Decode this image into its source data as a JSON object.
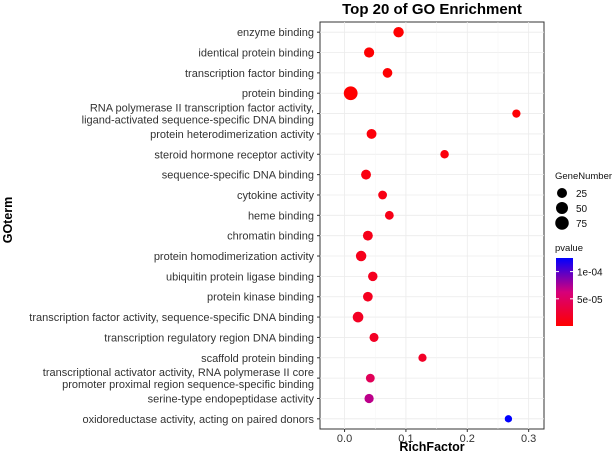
{
  "chart_data": {
    "type": "scatter",
    "title": "Top 20 of GO Enrichment",
    "xlabel": "RichFactor",
    "ylabel": "GOterm",
    "xlim": [
      -0.04,
      0.325
    ],
    "x_ticks": [
      0.0,
      0.1,
      0.2,
      0.3
    ],
    "x_tick_labels": [
      "0.0",
      "0.1",
      "0.2",
      "0.3"
    ],
    "grid": true,
    "legend_position": "right",
    "size_legend": {
      "title": "GeneNumber",
      "values": [
        25,
        50,
        75
      ],
      "labels": [
        "25",
        "50",
        "75"
      ]
    },
    "color_legend": {
      "title": "pvalue",
      "low_color": "#ff0000",
      "high_color": "#0000ff",
      "range": [
        0,
        0.000125
      ],
      "ticks": [
        5e-05,
        0.0001
      ],
      "tick_labels": [
        "5e-05",
        "1e-04"
      ]
    },
    "points": [
      {
        "term": [
          "enzyme binding"
        ],
        "x": 0.088,
        "gene_number": 30,
        "pvalue": 5e-07
      },
      {
        "term": [
          "identical protein binding"
        ],
        "x": 0.04,
        "gene_number": 27,
        "pvalue": 1e-06
      },
      {
        "term": [
          "transcription factor binding"
        ],
        "x": 0.07,
        "gene_number": 22,
        "pvalue": 1e-06
      },
      {
        "term": [
          "protein binding"
        ],
        "x": 0.01,
        "gene_number": 80,
        "pvalue": 1e-07
      },
      {
        "term": [
          "RNA polymerase II transcription factor activity,",
          "ligand-activated sequence-specific DNA binding"
        ],
        "x": 0.28,
        "gene_number": 10,
        "pvalue": 2e-06
      },
      {
        "term": [
          "protein heterodimerization activity"
        ],
        "x": 0.044,
        "gene_number": 24,
        "pvalue": 5e-06
      },
      {
        "term": [
          "steroid hormone receptor activity"
        ],
        "x": 0.163,
        "gene_number": 12,
        "pvalue": 6e-06
      },
      {
        "term": [
          "sequence-specific DNA binding"
        ],
        "x": 0.035,
        "gene_number": 24,
        "pvalue": 8e-06
      },
      {
        "term": [
          "cytokine activity"
        ],
        "x": 0.062,
        "gene_number": 14,
        "pvalue": 1e-05
      },
      {
        "term": [
          "heme binding"
        ],
        "x": 0.073,
        "gene_number": 14,
        "pvalue": 1.2e-05
      },
      {
        "term": [
          "chromatin binding"
        ],
        "x": 0.038,
        "gene_number": 24,
        "pvalue": 1.3e-05
      },
      {
        "term": [
          "protein homodimerization activity"
        ],
        "x": 0.027,
        "gene_number": 30,
        "pvalue": 1.4e-05
      },
      {
        "term": [
          "ubiquitin protein ligase binding"
        ],
        "x": 0.046,
        "gene_number": 20,
        "pvalue": 1.6e-05
      },
      {
        "term": [
          "protein kinase binding"
        ],
        "x": 0.038,
        "gene_number": 22,
        "pvalue": 1.6e-05
      },
      {
        "term": [
          "transcription factor activity, sequence-specific DNA binding"
        ],
        "x": 0.022,
        "gene_number": 32,
        "pvalue": 1.8e-05
      },
      {
        "term": [
          "transcription regulatory region DNA binding"
        ],
        "x": 0.048,
        "gene_number": 16,
        "pvalue": 1.9e-05
      },
      {
        "term": [
          "scaffold protein binding"
        ],
        "x": 0.127,
        "gene_number": 10,
        "pvalue": 2e-05
      },
      {
        "term": [
          "transcriptional activator activity, RNA polymerase II core",
          "promoter proximal region sequence-specific binding"
        ],
        "x": 0.042,
        "gene_number": 14,
        "pvalue": 4.5e-05
      },
      {
        "term": [
          "serine-type endopeptidase activity"
        ],
        "x": 0.04,
        "gene_number": 18,
        "pvalue": 7e-05
      },
      {
        "term": [
          "oxidoreductase activity, acting on paired donors"
        ],
        "x": 0.267,
        "gene_number": 5,
        "pvalue": 0.000125
      }
    ]
  }
}
